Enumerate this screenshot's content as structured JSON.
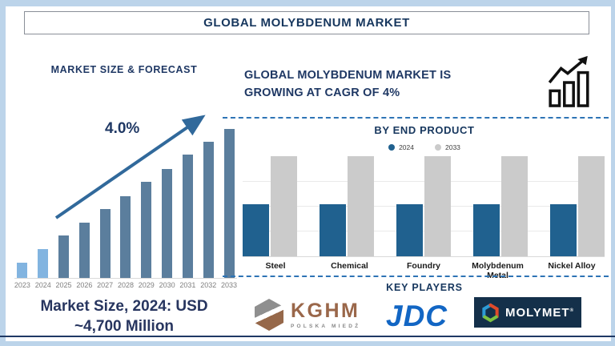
{
  "title": "GLOBAL MOLYBDENUM MARKET",
  "colors": {
    "navy_text": "#1F3864",
    "frame_blue": "#BCD4EA",
    "arrow_blue": "#31699B",
    "bar_light_blue": "#82B4E0",
    "bar_slate": "#5B7E9D",
    "bar_2024_blue": "#20618F",
    "bar_2033_gray": "#CBCBCB",
    "dashed_line_blue": "#2E74B5",
    "kghm_copper": "#9A674A",
    "kghm_gray": "#8F8F8F",
    "jdc_blue": "#1266C4",
    "molymet_navy": "#14304A"
  },
  "left": {
    "heading": "MARKET SIZE & FORECAST",
    "growth_label": "4.0%",
    "market_size_line1": "Market Size, 2024: USD",
    "market_size_line2": "~4,700 Million"
  },
  "right": {
    "heading_line1": "GLOBAL MOLYBDENUM MARKET IS",
    "heading_line2": "GROWING AT CAGR OF 4%",
    "by_end_product_heading": "BY END PRODUCT",
    "key_players_heading": "KEY PLAYERS",
    "players": [
      {
        "name": "KGHM",
        "subtitle": "POLSKA MIEDŹ"
      },
      {
        "name": "JDC"
      },
      {
        "name": "MOLYMET",
        "registered": "®"
      }
    ]
  },
  "chart_data": [
    {
      "type": "bar",
      "title": "MARKET SIZE & FORECAST",
      "categories": [
        "2023",
        "2024",
        "2025",
        "2026",
        "2027",
        "2028",
        "2029",
        "2030",
        "2031",
        "2032",
        "2033"
      ],
      "values_relative": [
        19,
        36,
        53,
        69,
        86,
        102,
        120,
        136,
        154,
        170,
        186
      ],
      "annotation": "4.0%",
      "note": "Stylized forecast bars, no y-axis shown; 2024 market size labeled USD ~4,700 Million; CAGR 4%",
      "bar_colors": {
        "2023": "#82B4E0",
        "2024": "#82B4E0",
        "default": "#5B7E9D"
      },
      "xlabel": "",
      "ylabel": ""
    },
    {
      "type": "bar",
      "title": "BY END PRODUCT",
      "categories": [
        "Steel",
        "Chemical",
        "Foundry",
        "Molybdenum Metal",
        "Nickel Alloy"
      ],
      "series": [
        {
          "name": "2024",
          "color": "#20618F",
          "values_relative": [
            52,
            52,
            52,
            52,
            52
          ]
        },
        {
          "name": "2033",
          "color": "#CBCBCB",
          "values_relative": [
            100,
            100,
            100,
            100,
            100
          ]
        }
      ],
      "ylim": [
        0,
        100
      ],
      "grid": true,
      "legend_position": "top",
      "note": "No numeric axis shown; bar heights are relative percentages of plot height"
    }
  ]
}
